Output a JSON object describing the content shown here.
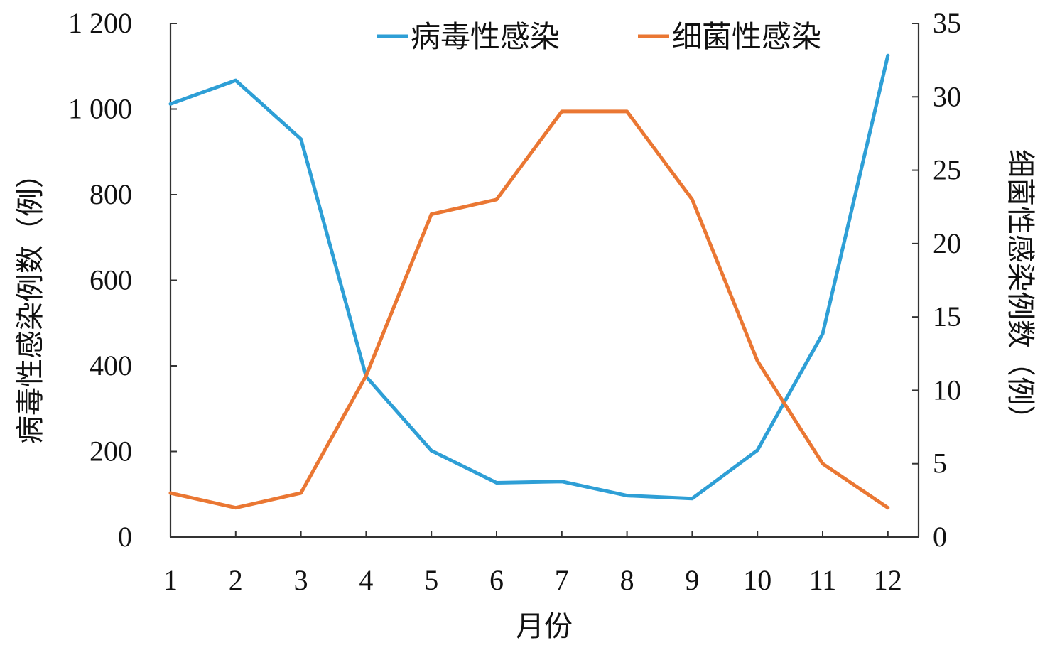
{
  "chart_data": {
    "type": "line",
    "x": [
      1,
      2,
      3,
      4,
      5,
      6,
      7,
      8,
      9,
      10,
      11,
      12
    ],
    "xlabel": "月份",
    "y_left": {
      "label": "病毒性感染例数（例）",
      "ylim": [
        0,
        1200
      ],
      "ticks": [
        0,
        200,
        400,
        600,
        800,
        1000,
        1200
      ],
      "tick_labels": [
        "0",
        "200",
        "400",
        "600",
        "800",
        "1 000",
        "1 200"
      ]
    },
    "y_right": {
      "label": "细菌性感染例数（例）",
      "ylim": [
        0,
        35
      ],
      "ticks": [
        0,
        5,
        10,
        15,
        20,
        25,
        30,
        35
      ],
      "tick_labels": [
        "0",
        "5",
        "10",
        "15",
        "20",
        "25",
        "30",
        "35"
      ]
    },
    "series": [
      {
        "name": "病毒性感染",
        "axis": "left",
        "color": "#2E9FD6",
        "values": [
          1012,
          1067,
          930,
          375,
          202,
          127,
          130,
          97,
          90,
          203,
          475,
          1125
        ]
      },
      {
        "name": "细菌性感染",
        "axis": "right",
        "color": "#EA7733",
        "values": [
          3,
          2,
          3,
          11,
          22,
          23,
          29,
          29,
          23,
          12,
          5,
          2
        ]
      }
    ],
    "legend_position": "top",
    "grid": false
  }
}
